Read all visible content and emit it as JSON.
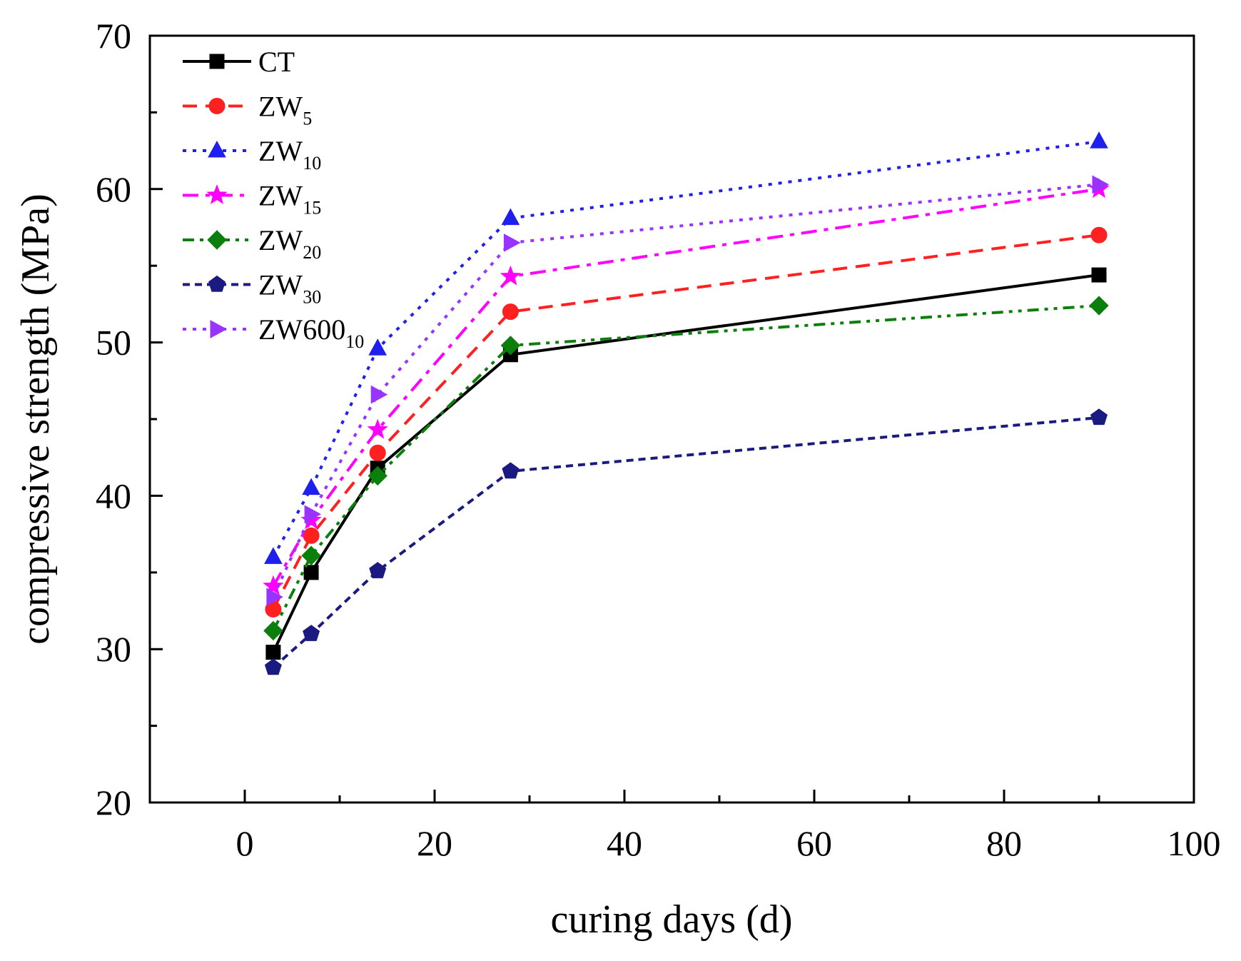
{
  "chart_data": {
    "type": "line",
    "title": "",
    "xlabel": "curing days (d)",
    "ylabel": "compressive strength (MPa)",
    "xlim": [
      -10,
      100
    ],
    "ylim": [
      20,
      70
    ],
    "x_major_ticks": [
      0,
      20,
      40,
      60,
      80,
      100
    ],
    "x_minor_ticks": [
      10,
      30,
      50,
      70,
      90
    ],
    "y_major_ticks": [
      20,
      30,
      40,
      50,
      60,
      70
    ],
    "y_minor_ticks": [
      25,
      35,
      45,
      55,
      65
    ],
    "grid": false,
    "legend_position": "top-left",
    "x": [
      3,
      7,
      14,
      28,
      90
    ],
    "series": [
      {
        "name": "CT",
        "subscript": "",
        "color": "#000000",
        "marker": "square",
        "dash": "solid",
        "values": [
          29.8,
          35.0,
          41.8,
          49.2,
          54.4
        ]
      },
      {
        "name": "ZW",
        "subscript": "5",
        "color": "#ff2020",
        "marker": "circle",
        "dash": "dash",
        "values": [
          32.6,
          37.4,
          42.8,
          52.0,
          57.0
        ]
      },
      {
        "name": "ZW",
        "subscript": "10",
        "color": "#2020ee",
        "marker": "triangle-up",
        "dash": "dot",
        "values": [
          36.0,
          40.5,
          49.6,
          58.1,
          63.1
        ]
      },
      {
        "name": "ZW",
        "subscript": "15",
        "color": "#ff00ff",
        "marker": "star",
        "dash": "dashdot",
        "values": [
          34.1,
          38.4,
          44.3,
          54.3,
          60.0
        ]
      },
      {
        "name": "ZW",
        "subscript": "20",
        "color": "#0b7f0b",
        "marker": "diamond",
        "dash": "dashdotdot",
        "values": [
          31.2,
          36.1,
          41.3,
          49.8,
          52.4
        ]
      },
      {
        "name": "ZW",
        "subscript": "30",
        "color": "#1a1a80",
        "marker": "pentagon",
        "dash": "shortdash",
        "values": [
          28.8,
          31.0,
          35.1,
          41.6,
          45.1
        ]
      },
      {
        "name": "ZW600",
        "subscript": "10",
        "color": "#9933ff",
        "marker": "triangle-right",
        "dash": "dot",
        "values": [
          33.4,
          38.8,
          46.6,
          56.5,
          60.3
        ]
      }
    ]
  }
}
